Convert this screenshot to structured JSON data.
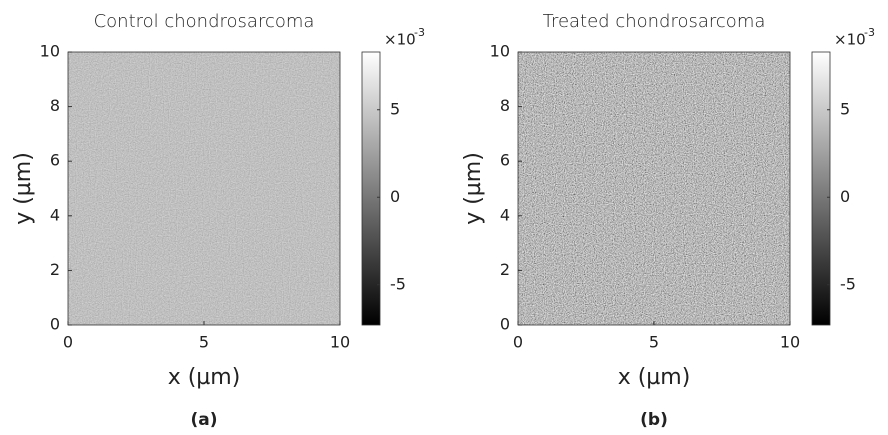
{
  "chart_data": [
    {
      "type": "heatmap",
      "title": "Control chondrosarcoma",
      "xlabel": "x (µm)",
      "ylabel": "y (µm)",
      "panel_label": "(a)",
      "xlim": [
        0,
        10
      ],
      "xticks": [
        0,
        5,
        10
      ],
      "ylim": [
        0,
        10
      ],
      "yticks": [
        0,
        2,
        4,
        6,
        8,
        10
      ],
      "clim": [
        -0.0073,
        0.0083
      ],
      "cticks": [
        {
          "value": -0.005,
          "label": "-5"
        },
        {
          "value": 0,
          "label": "0"
        },
        {
          "value": 0.005,
          "label": "5"
        }
      ],
      "colorbar_multiplier": "×10",
      "colorbar_exponent": "-3",
      "colormap": "gray"
    },
    {
      "type": "heatmap",
      "title": "Treated chondrosarcoma",
      "xlabel": "x (µm)",
      "ylabel": "y (µm)",
      "panel_label": "(b)",
      "xlim": [
        0,
        10
      ],
      "xticks": [
        0,
        5,
        10
      ],
      "ylim": [
        0,
        10
      ],
      "yticks": [
        0,
        2,
        4,
        6,
        8,
        10
      ],
      "clim": [
        -0.0073,
        0.0083
      ],
      "cticks": [
        {
          "value": -0.005,
          "label": "-5"
        },
        {
          "value": 0,
          "label": "0"
        },
        {
          "value": 0.005,
          "label": "5"
        }
      ],
      "colorbar_multiplier": "×10",
      "colorbar_exponent": "-3",
      "colormap": "gray"
    }
  ]
}
